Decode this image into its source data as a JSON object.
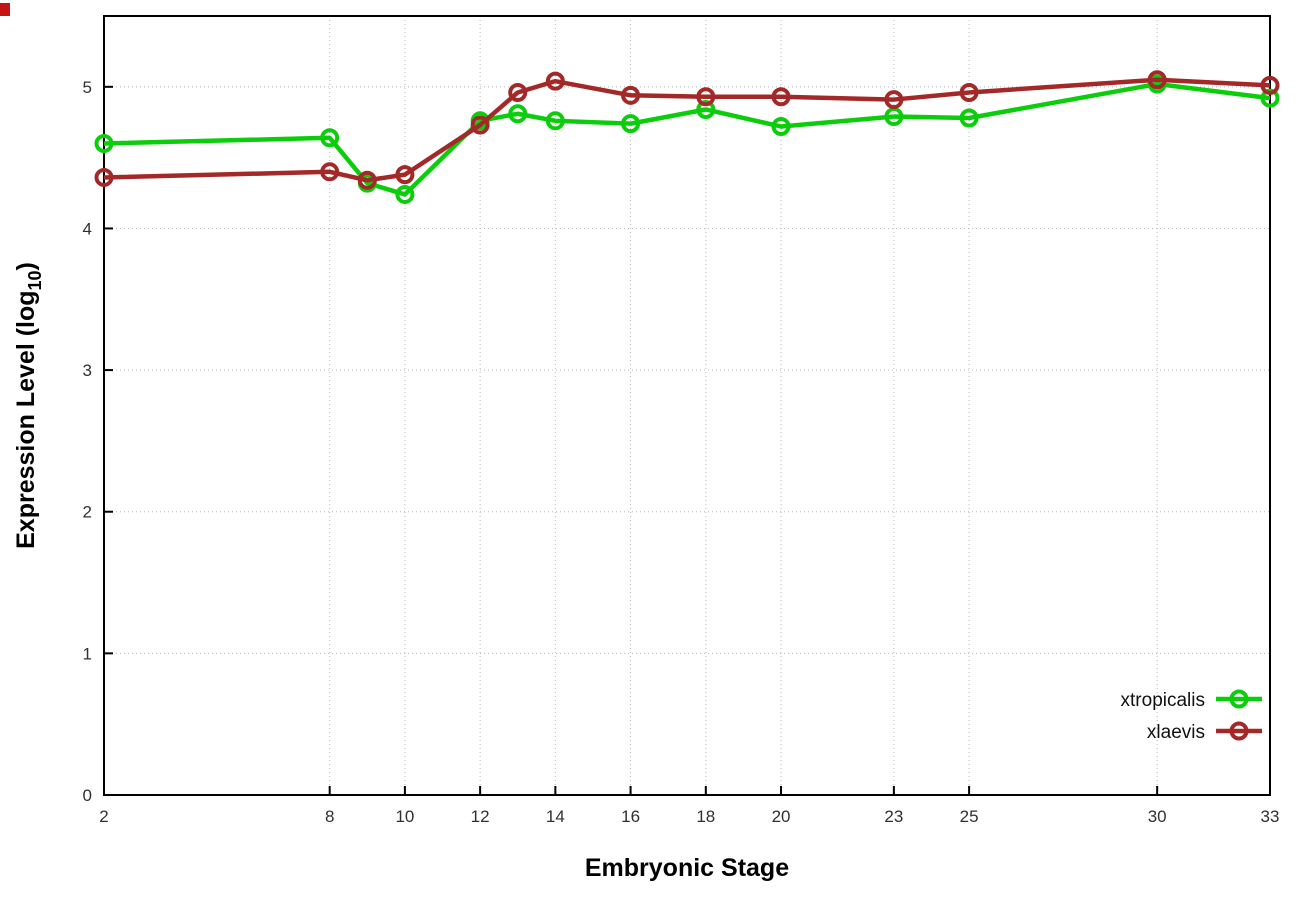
{
  "corner_marker": {
    "color": "#c41414"
  },
  "chart_data": {
    "type": "line",
    "title": "",
    "xlabel": "Embryonic Stage",
    "ylabel": "Expression Level (log10)",
    "ylabel_parts": {
      "base": "Expression Level (log",
      "subscript": "10",
      "close": ")"
    },
    "x": [
      2,
      8,
      9,
      10,
      12,
      13,
      14,
      16,
      18,
      20,
      23,
      25,
      30,
      33
    ],
    "x_tick_labels": [
      "2",
      "8",
      "10",
      "12",
      "14",
      "16",
      "18",
      "20",
      "23",
      "25",
      "30",
      "33"
    ],
    "x_tick_values": [
      2,
      8,
      10,
      12,
      14,
      16,
      18,
      20,
      23,
      25,
      30,
      33
    ],
    "y_tick_labels": [
      "0",
      "1",
      "2",
      "3",
      "4",
      "5"
    ],
    "y_tick_values": [
      0,
      1,
      2,
      3,
      4,
      5
    ],
    "xlim": [
      2,
      33
    ],
    "ylim": [
      0,
      5.5
    ],
    "grid": true,
    "legend_position": "bottom-right",
    "series": [
      {
        "name": "xtropicalis",
        "color": "#0bcd0b",
        "values": [
          4.6,
          4.64,
          4.32,
          4.24,
          4.76,
          4.81,
          4.76,
          4.74,
          4.84,
          4.72,
          4.79,
          4.78,
          5.02,
          4.92
        ]
      },
      {
        "name": "xlaevis",
        "color": "#a32929",
        "values": [
          4.36,
          4.4,
          4.34,
          4.38,
          4.73,
          4.96,
          5.04,
          4.94,
          4.93,
          4.93,
          4.91,
          4.96,
          5.05,
          5.01
        ]
      }
    ]
  }
}
